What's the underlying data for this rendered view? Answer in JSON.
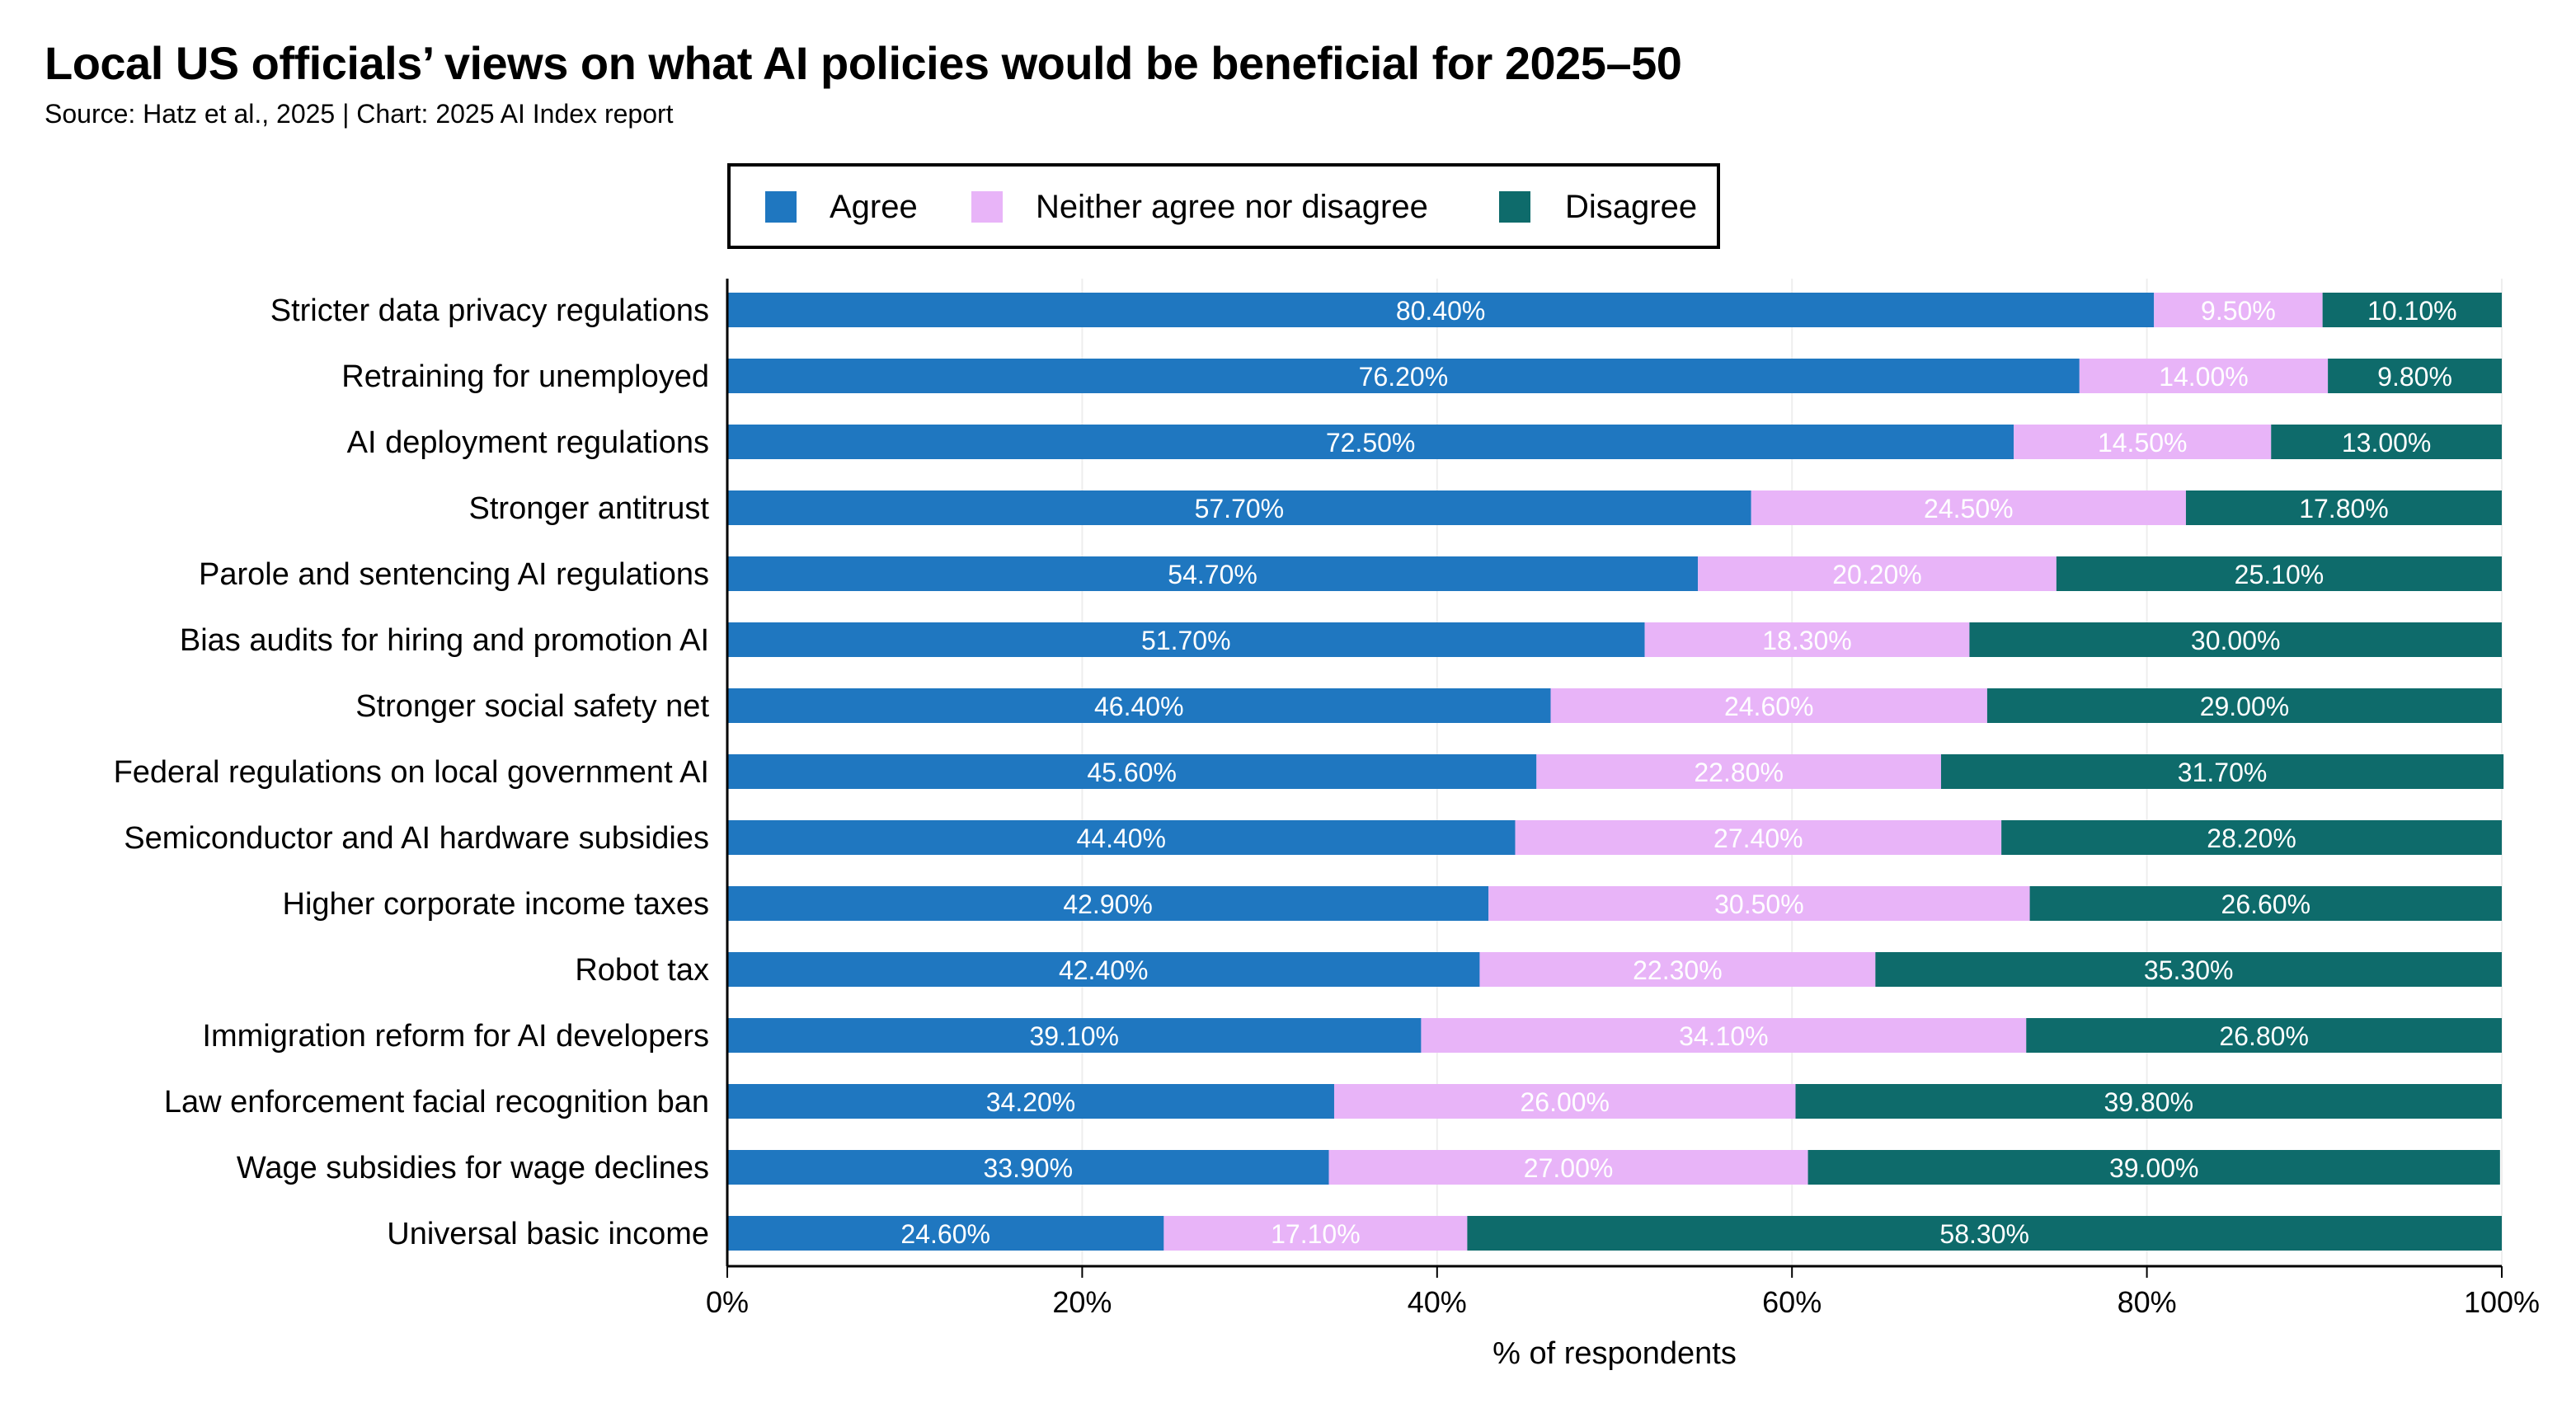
{
  "chart_data": {
    "type": "bar",
    "orientation": "horizontal",
    "stacked": true,
    "title": "Local US officials’ views on what AI policies would be beneficial for 2025–50",
    "subtitle": "Source: Hatz et al., 2025 | Chart: 2025 AI Index report",
    "xlabel": "% of respondents",
    "ylabel": "",
    "xlim": [
      0,
      100
    ],
    "xticks": [
      "0%",
      "20%",
      "40%",
      "60%",
      "80%",
      "100%"
    ],
    "legend_position": "top-center",
    "categories": [
      "Stricter data privacy regulations",
      "Retraining for unemployed",
      "AI deployment regulations",
      "Stronger antitrust",
      "Parole and sentencing AI regulations",
      "Bias audits for hiring and promotion AI",
      "Stronger social safety net",
      "Federal regulations on local government AI",
      "Semiconductor and AI hardware subsidies",
      "Higher corporate income taxes",
      "Robot tax",
      "Immigration reform for AI developers",
      "Law enforcement facial recognition ban",
      "Wage subsidies for wage declines",
      "Universal basic income"
    ],
    "series": [
      {
        "name": "Agree",
        "color": "#1f77c0",
        "label_color": "#ffffff",
        "values": [
          80.4,
          76.2,
          72.5,
          57.7,
          54.7,
          51.7,
          46.4,
          45.6,
          44.4,
          42.9,
          42.4,
          39.1,
          34.2,
          33.9,
          24.6
        ],
        "labels": [
          "80.40%",
          "76.20%",
          "72.50%",
          "57.70%",
          "54.70%",
          "51.70%",
          "46.40%",
          "45.60%",
          "44.40%",
          "42.90%",
          "42.40%",
          "39.10%",
          "34.20%",
          "33.90%",
          "24.60%"
        ]
      },
      {
        "name": "Neither agree nor disagree",
        "color": "#e8b4f8",
        "label_color": "#ffffff",
        "values": [
          9.5,
          14.0,
          14.5,
          24.5,
          20.2,
          18.3,
          24.6,
          22.8,
          27.4,
          30.5,
          22.3,
          34.1,
          26.0,
          27.0,
          17.1
        ],
        "labels": [
          "9.50%",
          "14.00%",
          "14.50%",
          "24.50%",
          "20.20%",
          "18.30%",
          "24.60%",
          "22.80%",
          "27.40%",
          "30.50%",
          "22.30%",
          "34.10%",
          "26.00%",
          "27.00%",
          "17.10%"
        ]
      },
      {
        "name": "Disagree",
        "color": "#0e6b6b",
        "label_color": "#ffffff",
        "values": [
          10.1,
          9.8,
          13.0,
          17.8,
          25.1,
          30.0,
          29.0,
          31.7,
          28.2,
          26.6,
          35.3,
          26.8,
          39.8,
          39.0,
          58.3
        ],
        "labels": [
          "10.10%",
          "9.80%",
          "13.00%",
          "17.80%",
          "25.10%",
          "30.00%",
          "29.00%",
          "31.70%",
          "28.20%",
          "26.60%",
          "35.30%",
          "26.80%",
          "39.80%",
          "39.00%",
          "58.30%"
        ]
      }
    ]
  }
}
